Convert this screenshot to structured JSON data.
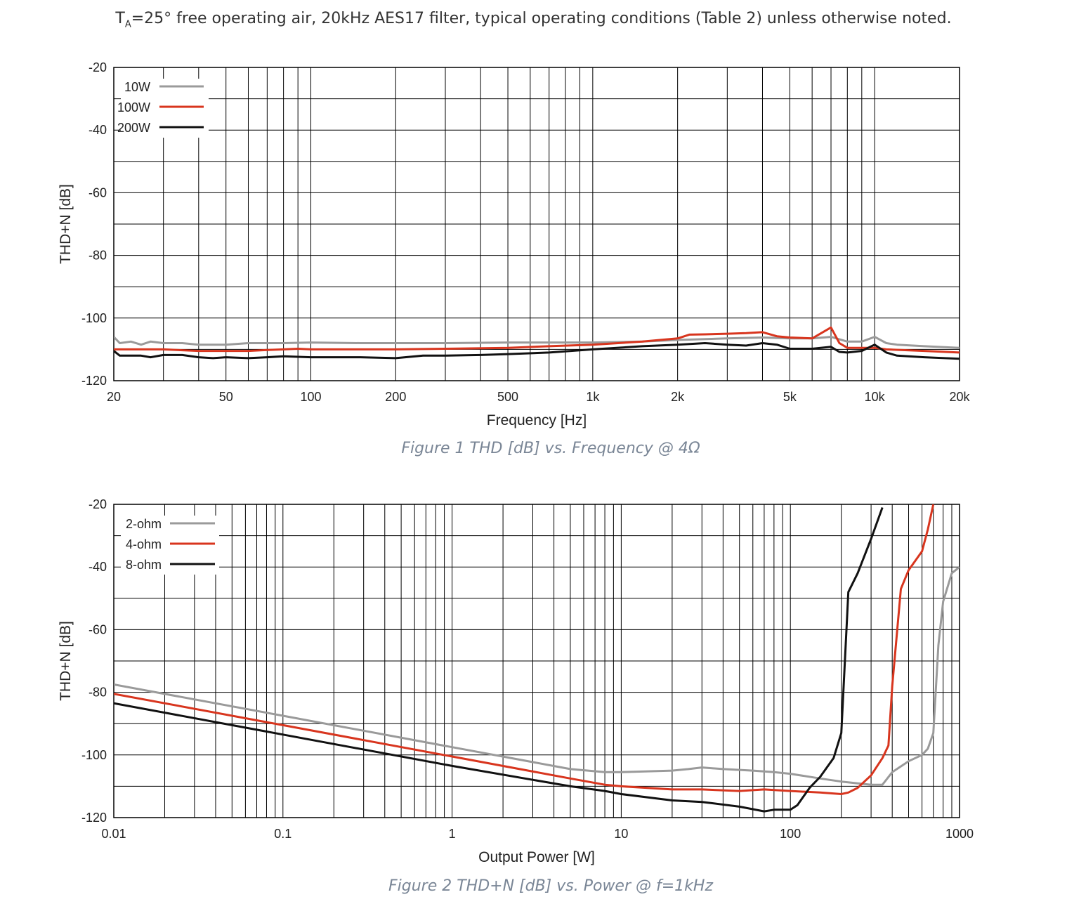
{
  "header": {
    "prefix": "T",
    "sub": "A",
    "rest": "=25° free operating air, 20kHz AES17 filter, typical operating conditions (Table 2) unless otherwise noted."
  },
  "colors": {
    "gray": "#9a9a9a",
    "red": "#d8351e",
    "black": "#111111"
  },
  "chart_data": [
    {
      "type": "line",
      "title": "",
      "caption": "Figure 1 THD [dB] vs. Frequency @ 4Ω",
      "xlabel": "Frequency [Hz]",
      "ylabel": "THD+N [dB]",
      "xscale": "log",
      "xlim": [
        20,
        20000
      ],
      "ylim": [
        -120,
        -20
      ],
      "xticks": [
        20,
        50,
        100,
        200,
        500,
        1000,
        2000,
        5000,
        10000,
        20000
      ],
      "xtick_labels": [
        "20",
        "50",
        "100",
        "200",
        "500",
        "1k",
        "2k",
        "5k",
        "10k",
        "20k"
      ],
      "yticks": [
        -20,
        -40,
        -60,
        -80,
        -100,
        -120
      ],
      "ytick_labels": [
        "-20",
        "-40",
        "-60",
        "-80",
        "-100",
        "-120"
      ],
      "grid": true,
      "legend_position": "top-left",
      "series": [
        {
          "name": "10W",
          "color": "gray",
          "x": [
            20,
            21,
            23,
            25,
            27,
            30,
            35,
            40,
            45,
            50,
            60,
            70,
            80,
            100,
            150,
            200,
            300,
            500,
            700,
            1000,
            1500,
            2000,
            3000,
            4000,
            5000,
            6000,
            7000,
            8000,
            9000,
            10000,
            11000,
            12000,
            15000,
            20000
          ],
          "y": [
            -106,
            -108,
            -107.5,
            -108.5,
            -107.5,
            -108,
            -108,
            -108.5,
            -108.5,
            -108.5,
            -108,
            -108,
            -108,
            -107.8,
            -108,
            -108,
            -108,
            -107.8,
            -107.8,
            -107.8,
            -107.5,
            -107,
            -106.5,
            -106.2,
            -106.5,
            -106.5,
            -106,
            -107.5,
            -107.5,
            -106,
            -108,
            -108.5,
            -109,
            -109.5
          ]
        },
        {
          "name": "100W",
          "color": "red",
          "x": [
            20,
            25,
            30,
            40,
            50,
            60,
            70,
            80,
            90,
            100,
            150,
            200,
            300,
            500,
            700,
            1000,
            1500,
            2000,
            2200,
            2500,
            3000,
            3500,
            4000,
            4500,
            5000,
            6000,
            7000,
            7500,
            8000,
            9000,
            10000,
            11000,
            15000,
            20000
          ],
          "y": [
            -110,
            -110,
            -110,
            -110.5,
            -110.5,
            -110.5,
            -110.2,
            -110,
            -109.8,
            -110,
            -110,
            -110,
            -109.8,
            -109.5,
            -109,
            -108.5,
            -107.5,
            -106.5,
            -105.3,
            -105.2,
            -105,
            -104.8,
            -104.5,
            -105.8,
            -106.2,
            -106.5,
            -103,
            -108,
            -109.5,
            -109.5,
            -109.5,
            -110,
            -110.5,
            -111
          ]
        },
        {
          "name": "200W",
          "color": "black",
          "x": [
            20,
            21,
            25,
            27,
            30,
            35,
            40,
            45,
            50,
            60,
            70,
            80,
            100,
            150,
            200,
            250,
            300,
            400,
            500,
            700,
            1000,
            1500,
            2000,
            2500,
            3000,
            3500,
            4000,
            4500,
            5000,
            6000,
            7000,
            7500,
            8000,
            9000,
            10000,
            11000,
            12000,
            15000,
            20000
          ],
          "y": [
            -110.5,
            -112,
            -112,
            -112.5,
            -111.8,
            -111.8,
            -112.5,
            -112.8,
            -112.5,
            -112.8,
            -112.5,
            -112.2,
            -112.5,
            -112.5,
            -112.8,
            -112,
            -112,
            -111.8,
            -111.5,
            -111,
            -110,
            -109,
            -108.5,
            -108,
            -108.5,
            -108.8,
            -108,
            -108.5,
            -109.8,
            -109.8,
            -109.2,
            -110.8,
            -111,
            -110.5,
            -108.5,
            -111,
            -112,
            -112.5,
            -113
          ]
        }
      ]
    },
    {
      "type": "line",
      "title": "",
      "caption": "Figure 2 THD+N [dB] vs. Power @ f=1kHz",
      "xlabel": "Output Power [W]",
      "ylabel": "THD+N [dB]",
      "xscale": "log",
      "xlim": [
        0.01,
        1000
      ],
      "ylim": [
        -120,
        -20
      ],
      "xticks": [
        0.01,
        0.1,
        1,
        10,
        100,
        1000
      ],
      "xtick_labels": [
        "0.01",
        "0.1",
        "1",
        "10",
        "100",
        "1000"
      ],
      "yticks": [
        -20,
        -40,
        -60,
        -80,
        -100,
        -120
      ],
      "ytick_labels": [
        "-20",
        "-40",
        "-60",
        "-80",
        "-100",
        "-120"
      ],
      "grid": true,
      "legend_position": "top-left",
      "series": [
        {
          "name": "2-ohm",
          "color": "gray",
          "x": [
            0.01,
            0.1,
            1,
            5,
            8,
            10,
            20,
            25,
            30,
            40,
            60,
            80,
            100,
            150,
            200,
            300,
            350,
            400,
            500,
            600,
            650,
            700,
            750,
            800,
            900,
            1000
          ],
          "y": [
            -77.5,
            -87.5,
            -97.5,
            -104.5,
            -105.5,
            -105.5,
            -105,
            -104.5,
            -104,
            -104.5,
            -105,
            -105.5,
            -106,
            -107.5,
            -108.5,
            -109.5,
            -109.5,
            -105.5,
            -102,
            -100,
            -98,
            -93,
            -65,
            -51,
            -42,
            -40
          ]
        },
        {
          "name": "4-ohm",
          "color": "red",
          "x": [
            0.01,
            0.1,
            1,
            5,
            8,
            10,
            20,
            30,
            50,
            70,
            100,
            150,
            200,
            220,
            250,
            300,
            350,
            380,
            400,
            450,
            500,
            600,
            650,
            700
          ],
          "y": [
            -80.5,
            -90.5,
            -100.5,
            -107.5,
            -109.5,
            -110,
            -111,
            -111,
            -111.5,
            -111,
            -111.5,
            -112,
            -112.5,
            -112,
            -110.5,
            -106.5,
            -101,
            -97,
            -78,
            -47,
            -41,
            -35,
            -28,
            -20
          ]
        },
        {
          "name": "8-ohm",
          "color": "black",
          "x": [
            0.01,
            0.1,
            1,
            5,
            8,
            10,
            20,
            30,
            50,
            70,
            80,
            100,
            110,
            130,
            150,
            180,
            200,
            220,
            250,
            300,
            350
          ],
          "y": [
            -83.5,
            -93.5,
            -103.5,
            -110,
            -111.5,
            -112.5,
            -114.5,
            -115,
            -116.5,
            -118,
            -117.5,
            -117.5,
            -116,
            -110.5,
            -107,
            -101,
            -93,
            -48,
            -42,
            -31,
            -21
          ]
        }
      ]
    }
  ]
}
